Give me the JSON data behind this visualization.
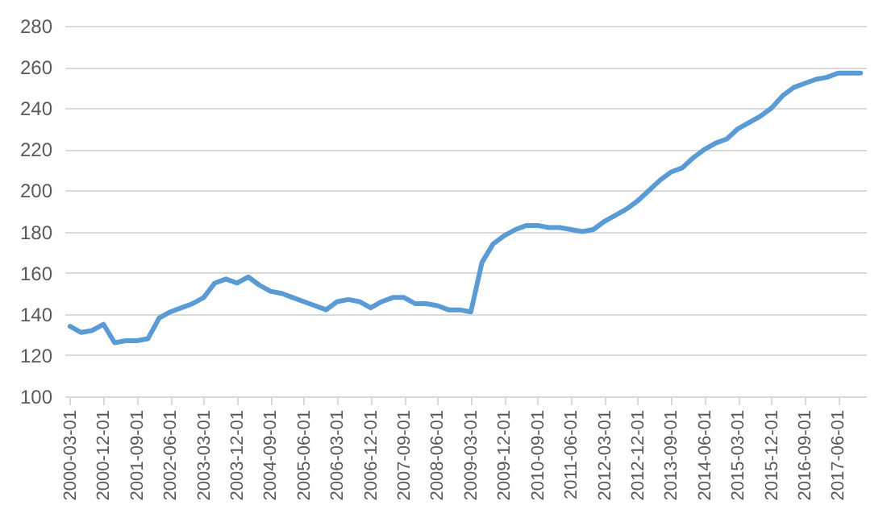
{
  "chart_data": {
    "type": "line",
    "categories": [
      "2000-03-01",
      null,
      null,
      "2000-12-01",
      null,
      null,
      "2001-09-01",
      null,
      null,
      "2002-06-01",
      null,
      null,
      "2003-03-01",
      null,
      null,
      "2003-12-01",
      null,
      null,
      "2004-09-01",
      null,
      null,
      "2005-06-01",
      null,
      null,
      "2006-03-01",
      null,
      null,
      "2006-12-01",
      null,
      null,
      "2007-09-01",
      null,
      null,
      "2008-06-01",
      null,
      null,
      "2009-03-01",
      null,
      null,
      "2009-12-01",
      null,
      null,
      "2010-09-01",
      null,
      null,
      "2011-06-01",
      null,
      null,
      "2012-03-01",
      null,
      null,
      "2012-12-01",
      null,
      null,
      "2013-09-01",
      null,
      null,
      "2014-06-01",
      null,
      null,
      "2015-03-01",
      null,
      null,
      "2015-12-01",
      null,
      null,
      "2016-09-01",
      null,
      null,
      "2017-06-01",
      null,
      null
    ],
    "series": [
      {
        "color": "#5b9bd5",
        "values": [
          134,
          131,
          132,
          135,
          126,
          127,
          127,
          128,
          138,
          141,
          143,
          145,
          148,
          155,
          157,
          155,
          158,
          154,
          151,
          150,
          148,
          146,
          144,
          142,
          146,
          147,
          146,
          143,
          146,
          148,
          148,
          145,
          145,
          144,
          142,
          142,
          141,
          165,
          174,
          178,
          181,
          183,
          183,
          182,
          182,
          181,
          180,
          181,
          185,
          188,
          191,
          195,
          200,
          205,
          209,
          211,
          216,
          220,
          223,
          225,
          230,
          233,
          236,
          240,
          246,
          250,
          252,
          254,
          255,
          257,
          257,
          257
        ]
      }
    ],
    "ylim": [
      100,
      280
    ],
    "yticks": [
      100,
      120,
      140,
      160,
      180,
      200,
      220,
      240,
      260,
      280
    ],
    "grid": "y",
    "marker": "none",
    "line_style": "solid"
  }
}
